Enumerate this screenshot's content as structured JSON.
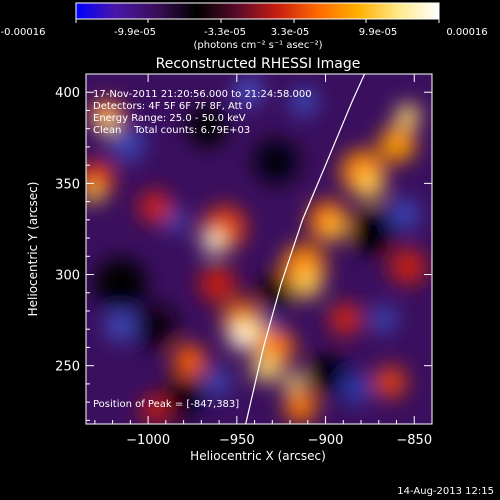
{
  "colorbar": {
    "ticks": [
      "-0.00016",
      "-9.9e-05",
      "-3.3e-05",
      "3.3e-05",
      "9.9e-05",
      "0.00016"
    ],
    "unit_label": "(photons cm⁻² s⁻¹ asec⁻²)",
    "range": [
      -0.00016,
      0.00016
    ],
    "colormap": [
      "#0000ff",
      "#4a17a8",
      "#3a0e58",
      "#000000",
      "#5a0a2a",
      "#c81e10",
      "#ff6a00",
      "#ffb000",
      "#ffe98a",
      "#ffffff"
    ]
  },
  "chart_data": {
    "type": "heatmap",
    "title": "Reconstructed RHESSI Image",
    "xlabel": "Heliocentric X (arcsec)",
    "ylabel": "Heliocentric Y (arcsec)",
    "xlim": [
      -1035,
      -840
    ],
    "ylim": [
      218,
      410
    ],
    "xticks": [
      -1000,
      -950,
      -900,
      -850
    ],
    "xtick_labels": [
      "−1000",
      "−950",
      "−900",
      "−850"
    ],
    "yticks": [
      250,
      300,
      350,
      400
    ],
    "ytick_labels": [
      "250",
      "300",
      "350",
      "400"
    ],
    "annotations": [
      "17-Nov-2011 21:20:56.000 to 21:24:58.000",
      "Detectors: 4F 5F 6F 7F 8F, Att 0",
      "Energy Range: 25.0 - 50.0 keV",
      "Clean    Total counts: 6.79E+03"
    ],
    "peak_label": "Position of Peak = [-847,383]",
    "peak_position": [
      -847,
      383
    ],
    "limb_curve": [
      [
        -945,
        218
      ],
      [
        -935,
        260
      ],
      [
        -925,
        295
      ],
      [
        -913,
        330
      ],
      [
        -900,
        360
      ],
      [
        -885,
        395
      ],
      [
        -878,
        410
      ]
    ],
    "grid": false
  },
  "footer": {
    "timestamp": "14-Aug-2013 12:15"
  }
}
